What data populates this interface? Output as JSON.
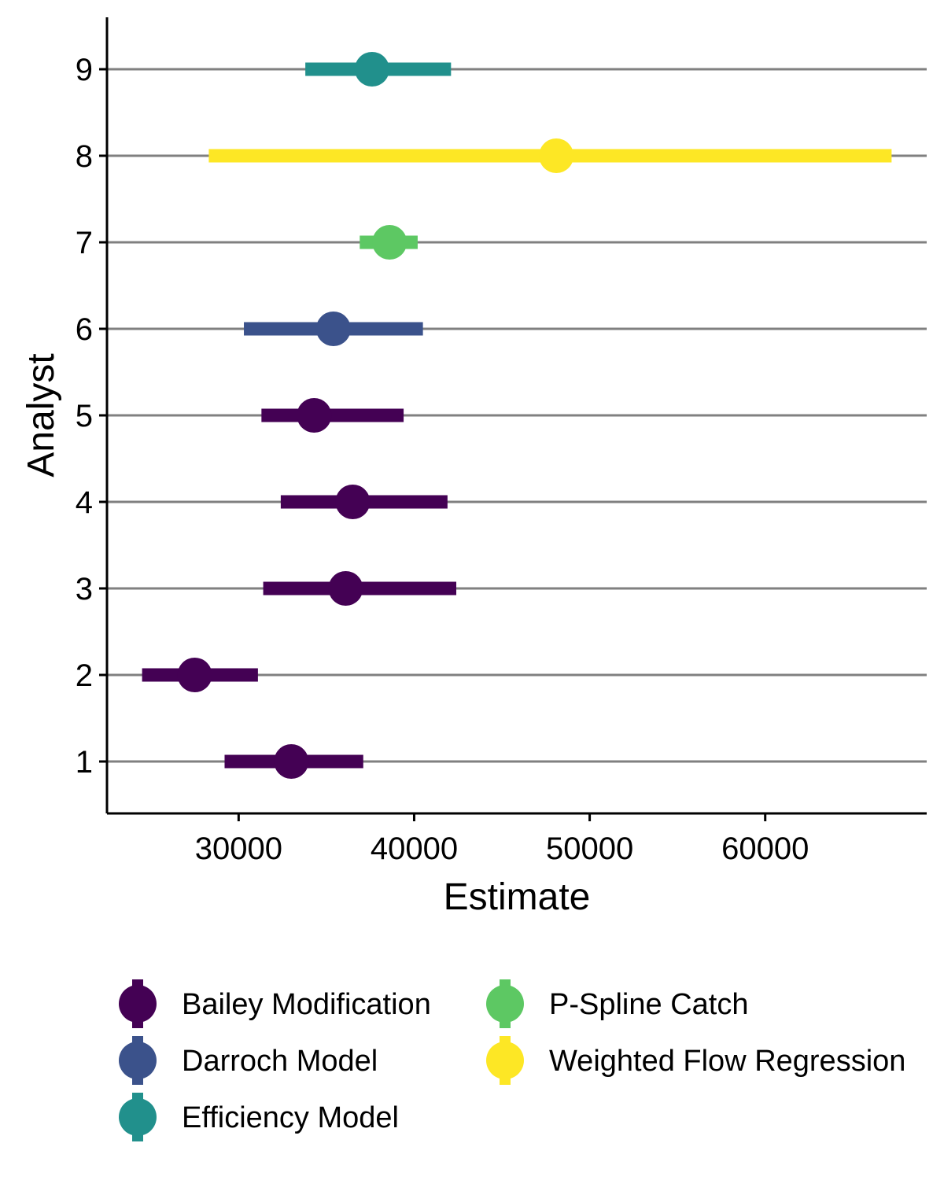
{
  "chart_data": {
    "type": "forest",
    "xlabel": "Estimate",
    "ylabel": "Analyst",
    "xticks": [
      30000,
      40000,
      50000,
      60000
    ],
    "yticks": [
      1,
      2,
      3,
      4,
      5,
      6,
      7,
      8,
      9
    ],
    "xlim": [
      22500,
      69200
    ],
    "ylim": [
      0.4,
      9.6
    ],
    "grid": "horizontal",
    "legend_position": "bottom",
    "series": [
      {
        "name": "Bailey Modification",
        "color": "#440154"
      },
      {
        "name": "Darroch Model",
        "color": "#3B528B"
      },
      {
        "name": "Efficiency Model",
        "color": "#21908C"
      },
      {
        "name": "P-Spline Catch",
        "color": "#5DC863"
      },
      {
        "name": "Weighted Flow Regression",
        "color": "#FDE725"
      }
    ],
    "points": [
      {
        "analyst": 1,
        "estimate": 33000,
        "lower": 29200,
        "upper": 37100,
        "series": "Bailey Modification"
      },
      {
        "analyst": 2,
        "estimate": 27500,
        "lower": 24500,
        "upper": 31100,
        "series": "Bailey Modification"
      },
      {
        "analyst": 3,
        "estimate": 36100,
        "lower": 31400,
        "upper": 42400,
        "series": "Bailey Modification"
      },
      {
        "analyst": 4,
        "estimate": 36500,
        "lower": 32400,
        "upper": 41900,
        "series": "Bailey Modification"
      },
      {
        "analyst": 5,
        "estimate": 34300,
        "lower": 31300,
        "upper": 39400,
        "series": "Bailey Modification"
      },
      {
        "analyst": 6,
        "estimate": 35400,
        "lower": 30300,
        "upper": 40500,
        "series": "Darroch Model"
      },
      {
        "analyst": 7,
        "estimate": 38600,
        "lower": 36900,
        "upper": 40200,
        "series": "P-Spline Catch"
      },
      {
        "analyst": 8,
        "estimate": 48100,
        "lower": 28300,
        "upper": 67200,
        "series": "Weighted Flow Regression"
      },
      {
        "analyst": 9,
        "estimate": 37600,
        "lower": 33800,
        "upper": 42100,
        "series": "Efficiency Model"
      }
    ]
  }
}
